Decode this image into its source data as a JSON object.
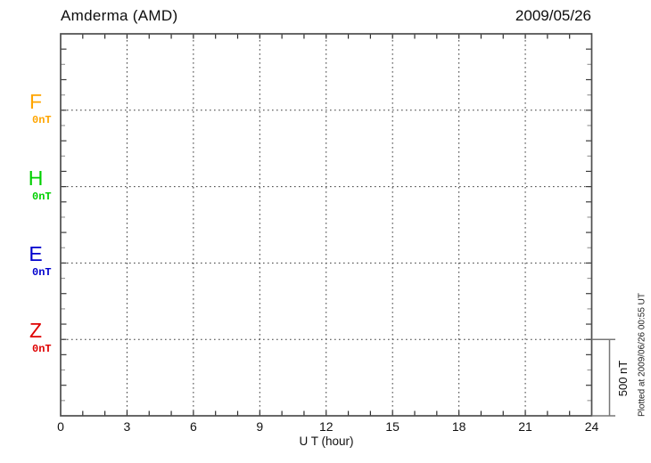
{
  "header": {
    "title": "Amderma (AMD)",
    "date": "2009/05/26"
  },
  "plot": {
    "xlabel": "U T (hour)",
    "plotted_note": "Plotted at 2009/06/26 00:55 UT",
    "scale_bar": {
      "label": "500 nT",
      "span_nT": 500
    },
    "colors": {
      "frame": "#4d4d4d",
      "hour_tick": "#2b2b2b",
      "y_tick_major": "#3a3a3a",
      "y_tick_minor": "#9a9a9a",
      "grid_dots": "#3b3b3b",
      "scale_bar": "#777777"
    }
  },
  "chart_data": {
    "type": "line",
    "title": "Amderma (AMD)",
    "date": "2009/05/26",
    "xlabel": "U T (hour)",
    "x_range": [
      0,
      24
    ],
    "x_major_ticks": [
      0,
      3,
      6,
      9,
      12,
      15,
      18,
      21,
      24
    ],
    "x_minor_step_hours": 1,
    "grid": "dotted vertical lines every 3 hours; dotted horizontal line at each channel baseline",
    "scale_bar_nT": 500,
    "channels": [
      {
        "name": "F",
        "baseline_label": "0nT",
        "color": "#FFA500",
        "values": []
      },
      {
        "name": "H",
        "baseline_label": "0nT",
        "color": "#00CF00",
        "values": []
      },
      {
        "name": "E",
        "baseline_label": "0nT",
        "color": "#0000CD",
        "values": []
      },
      {
        "name": "Z",
        "baseline_label": "0nT",
        "color": "#DF0000",
        "values": []
      }
    ],
    "note": "No data traces are drawn; magnetogram grid is empty for this day"
  }
}
